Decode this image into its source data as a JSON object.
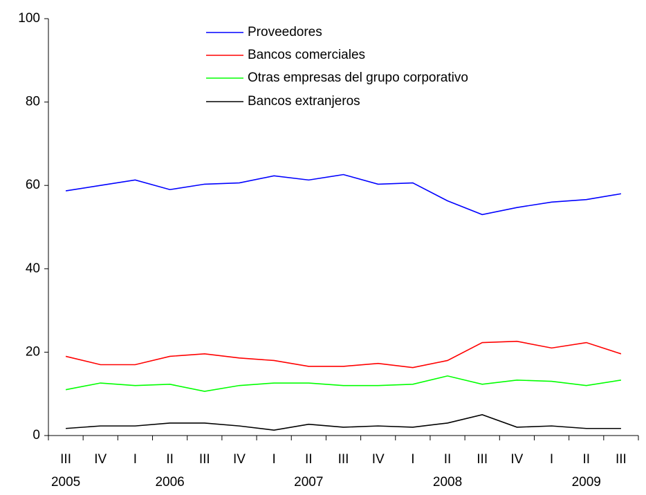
{
  "chart_data": {
    "type": "line",
    "categories": [
      "III",
      "IV",
      "I",
      "II",
      "III",
      "IV",
      "I",
      "II",
      "III",
      "IV",
      "I",
      "II",
      "III",
      "IV",
      "I",
      "II",
      "III"
    ],
    "years": [
      "2005",
      null,
      null,
      "2006",
      null,
      null,
      null,
      "2007",
      null,
      null,
      null,
      "2008",
      null,
      null,
      null,
      "2009",
      null
    ],
    "series": [
      {
        "name": "Proveedores",
        "color": "#0000ff",
        "values": [
          58.7,
          60,
          61.3,
          59,
          60.3,
          60.6,
          62.3,
          61.3,
          62.6,
          60.3,
          60.6,
          56.3,
          53,
          54.7,
          56,
          56.6,
          58
        ]
      },
      {
        "name": "Bancos comerciales",
        "color": "#ff0000",
        "values": [
          19,
          17,
          17,
          19,
          19.6,
          18.6,
          18,
          16.6,
          16.6,
          17.3,
          16.3,
          18,
          22.3,
          22.6,
          21,
          22.3,
          19.6
        ]
      },
      {
        "name": "Otras empresas del grupo corporativo",
        "color": "#00ff00",
        "values": [
          11,
          12.6,
          12,
          12.3,
          10.6,
          12,
          12.6,
          12.6,
          12,
          12,
          12.3,
          14.3,
          12.3,
          13.3,
          13,
          12,
          13.3
        ]
      },
      {
        "name": "Bancos extranjeros",
        "color": "#000000",
        "values": [
          1.7,
          2.3,
          2.3,
          3,
          3,
          2.3,
          1.3,
          2.7,
          2,
          2.3,
          2,
          3,
          5,
          2,
          2.3,
          1.7,
          1.7
        ]
      }
    ],
    "ylim": [
      0,
      100
    ],
    "yticks": [
      0,
      20,
      40,
      60,
      80,
      100
    ],
    "grid": false
  }
}
